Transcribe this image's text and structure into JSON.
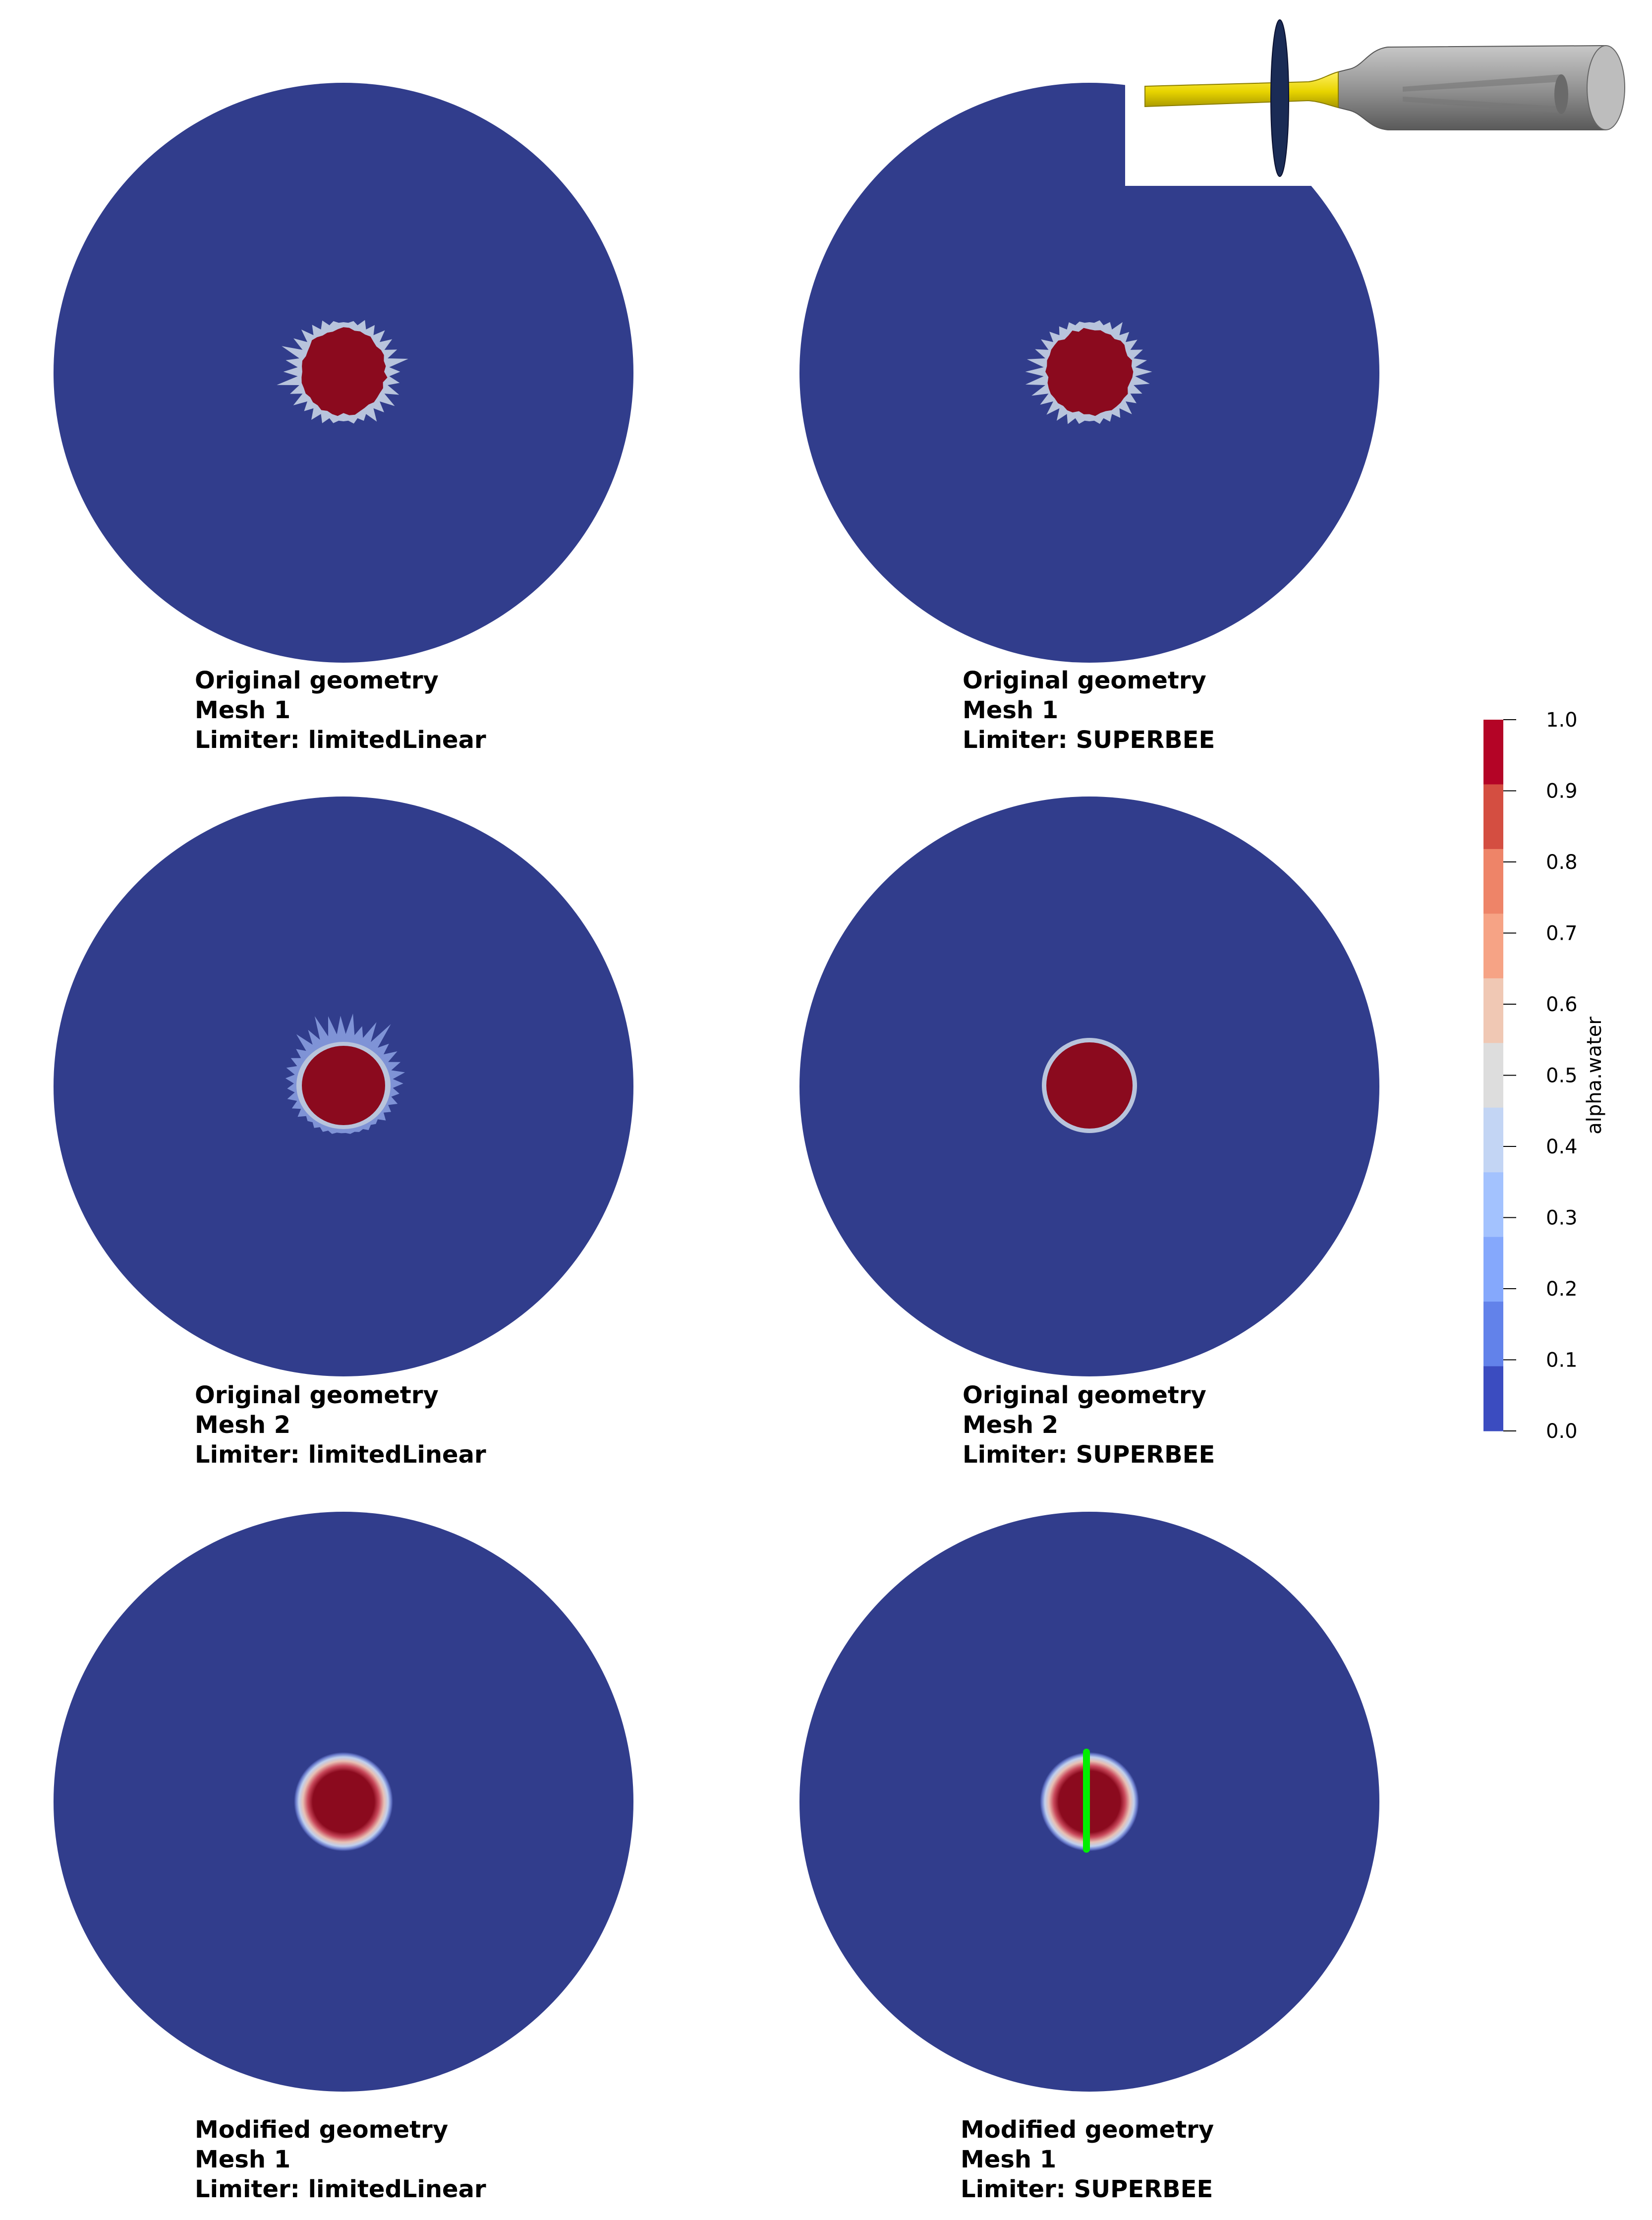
{
  "panels": [
    {
      "lines": [
        "Original geometry",
        "Mesh 1",
        "Limiter: limitedLinear"
      ],
      "blob": "jagged"
    },
    {
      "lines": [
        "Original geometry",
        "Mesh 1",
        "Limiter: SUPERBEE"
      ],
      "blob": "jagged"
    },
    {
      "lines": [
        "Original geometry",
        "Mesh 2",
        "Limiter: limitedLinear"
      ],
      "blob": "spiky"
    },
    {
      "lines": [
        "Original geometry",
        "Mesh 2",
        "Limiter: SUPERBEE"
      ],
      "blob": "smooth"
    },
    {
      "lines": [
        "Modified geometry",
        "Mesh 1",
        "Limiter: limitedLinear"
      ],
      "blob": "diffuse"
    },
    {
      "lines": [
        "Modified geometry",
        "Mesh 1",
        "Limiter: SUPERBEE"
      ],
      "blob": "diffuse-line"
    }
  ],
  "colorbar": {
    "title": "alpha.water",
    "ticks": [
      "1.0",
      "0.9",
      "0.8",
      "0.7",
      "0.6",
      "0.5",
      "0.4",
      "0.3",
      "0.2",
      "0.1",
      "0.0"
    ],
    "colors": [
      "#b40426",
      "#d44e41",
      "#ee8468",
      "#f6a385",
      "#f0c8b4",
      "#dddddd",
      "#c3d5f4",
      "#a3c2fe",
      "#85a8fc",
      "#6282ea",
      "#3b4cc0"
    ]
  },
  "colors": {
    "air": "#313d8c",
    "water": "#8b0a1e",
    "interface": "#b8c4dc",
    "probe_line": "#00ee00",
    "nozzle_yellow": "#f0e010",
    "nozzle_gray": "#8e8e8e",
    "disc": "#1a2b55"
  }
}
